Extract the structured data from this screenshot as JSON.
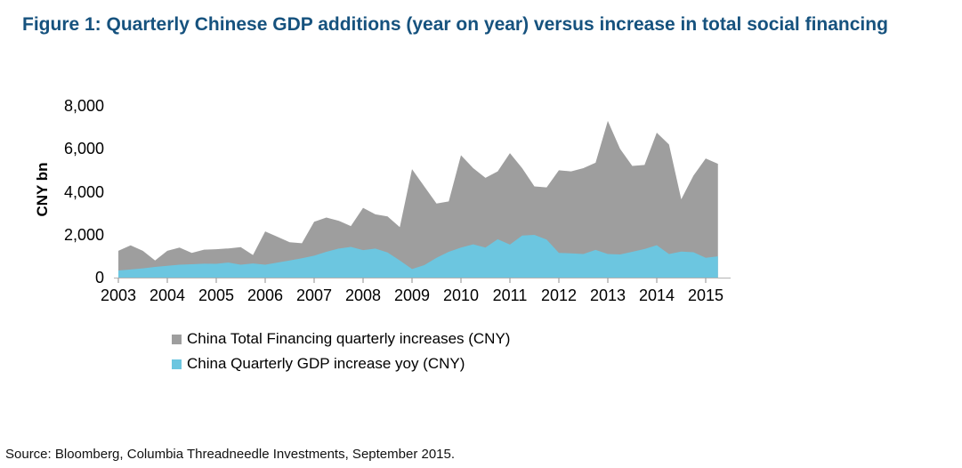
{
  "figure": {
    "title": "Figure 1: Quarterly Chinese GDP additions (year on year) versus increase in total social financing",
    "title_color": "#16527e",
    "source_note": "Source: Bloomberg, Columbia Threadneedle Investments, September 2015."
  },
  "y_axis": {
    "title": "CNY bn",
    "ticks": [
      {
        "label": "0",
        "value": 0
      },
      {
        "label": "2,000",
        "value": 2000
      },
      {
        "label": "4,000",
        "value": 4000
      },
      {
        "label": "6,000",
        "value": 6000
      },
      {
        "label": "8,000",
        "value": 8000
      }
    ]
  },
  "x_axis": {
    "tick_labels": [
      "2003",
      "2004",
      "2005",
      "2006",
      "2007",
      "2008",
      "2009",
      "2010",
      "2011",
      "2012",
      "2013",
      "2014",
      "2015"
    ]
  },
  "chart_data": {
    "type": "area",
    "title": "Figure 1: Quarterly Chinese GDP additions (year on year) versus increase in total social financing",
    "xlabel": "",
    "ylabel": "CNY bn",
    "ylim": [
      0,
      8000
    ],
    "grid": false,
    "legend_position": "bottom",
    "frequency": "quarterly",
    "x_start": "2003-Q1",
    "x_end": "2015-Q2",
    "axis_color": "#b3b3b3",
    "tick_color": "#8c8c8c",
    "series": [
      {
        "id": "total-financing",
        "name": "China Total Financing quarterly increases (CNY)",
        "color": "#9e9e9e",
        "values": [
          1250,
          1500,
          1250,
          800,
          1250,
          1400,
          1150,
          1300,
          1320,
          1360,
          1420,
          1050,
          2150,
          1900,
          1650,
          1600,
          2600,
          2800,
          2650,
          2400,
          3250,
          2950,
          2850,
          2350,
          5050,
          4250,
          3450,
          3550,
          5700,
          5100,
          4650,
          4950,
          5800,
          5100,
          4250,
          4200,
          5000,
          4950,
          5100,
          5350,
          7300,
          6000,
          5200,
          5250,
          6750,
          6200,
          3650,
          4750,
          5550,
          5300
        ]
      },
      {
        "id": "gdp-increase",
        "name": "China Quarterly GDP increase yoy (CNY)",
        "color": "#6cc6e0",
        "values": [
          330,
          380,
          430,
          500,
          550,
          600,
          620,
          650,
          640,
          700,
          600,
          660,
          600,
          700,
          800,
          900,
          1020,
          1200,
          1350,
          1430,
          1280,
          1350,
          1170,
          800,
          400,
          580,
          920,
          1200,
          1400,
          1550,
          1400,
          1790,
          1540,
          1960,
          1990,
          1770,
          1150,
          1130,
          1100,
          1290,
          1100,
          1080,
          1200,
          1330,
          1510,
          1100,
          1210,
          1180,
          920,
          990
        ]
      }
    ]
  }
}
